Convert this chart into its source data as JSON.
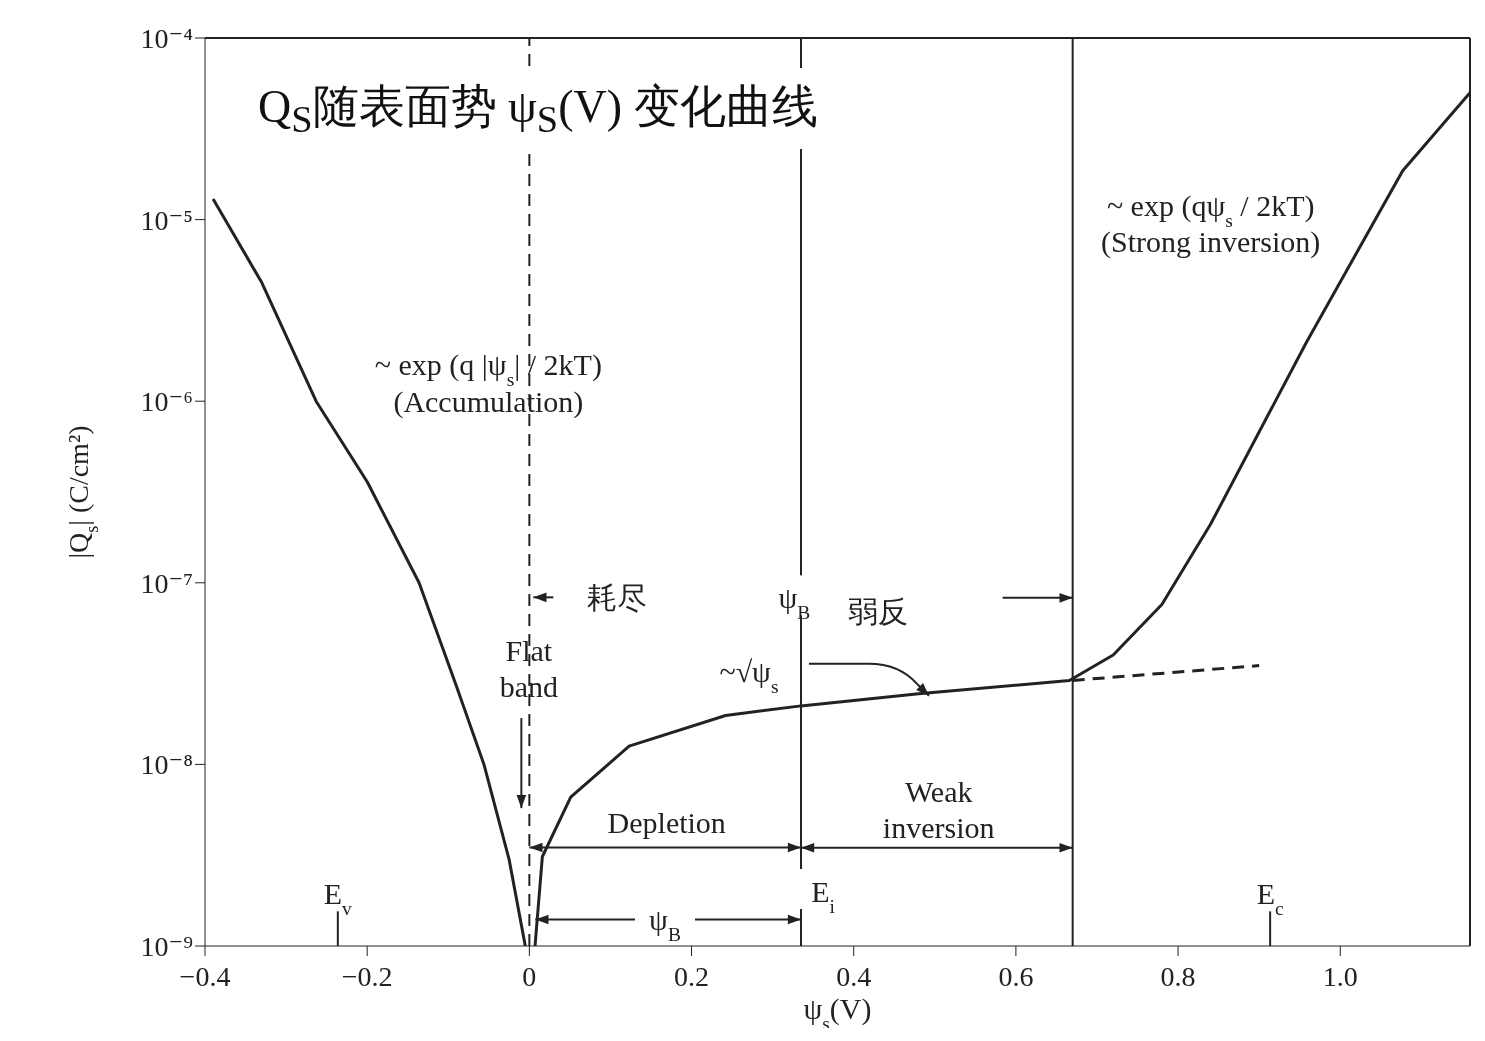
{
  "chart_data": {
    "type": "line",
    "title": "Q$_{S}$随表面势 ψ$_{S}$(V) 变化曲线",
    "xlabel": "ψ$_{s}$(V)",
    "ylabel": "|Q$_{s}$| (C/cm²)",
    "log": "y",
    "marker": "none",
    "line_style": "solid",
    "xlim": [
      -0.4,
      1.16
    ],
    "xticks": [
      {
        "value": -0.4,
        "label": "−0.4"
      },
      {
        "value": -0.2,
        "label": "−0.2"
      },
      0,
      0.2,
      0.4,
      0.6,
      0.8,
      {
        "value": 1,
        "label": "1.0"
      }
    ],
    "ylim": [
      1e-09,
      0.0001
    ],
    "yticks": [
      {
        "value": 1e-09,
        "label": "10⁻⁹"
      },
      {
        "value": 1e-08,
        "label": "10⁻⁸"
      },
      {
        "value": 1e-07,
        "label": "10⁻⁷"
      },
      {
        "value": 1e-06,
        "label": "10⁻⁶"
      },
      {
        "value": 1e-05,
        "label": "10⁻⁵"
      },
      {
        "value": 0.0001,
        "label": "10⁻⁴"
      }
    ],
    "series": [
      {
        "color": "#222222",
        "x": [
          -0.39,
          -0.33,
          -0.263,
          -0.2,
          -0.136,
          -0.09,
          -0.056,
          -0.025,
          -0.005
        ],
        "values": [
          1.3e-05,
          4.5e-06,
          1e-06,
          3.6e-07,
          1e-07,
          2.7e-08,
          1e-08,
          3e-09,
          1e-09
        ]
      },
      {
        "color": "#222222",
        "x": [
          0.007,
          0.016,
          0.051,
          0.123,
          0.242,
          0.335,
          0.48,
          0.666,
          0.72,
          0.78,
          0.84,
          0.958,
          1.077,
          1.16
        ],
        "values": [
          1e-09,
          3.1e-09,
          6.6e-09,
          1.26e-08,
          1.86e-08,
          2.1e-08,
          2.45e-08,
          2.9e-08,
          4e-08,
          7.6e-08,
          2.1e-07,
          2.1e-06,
          1.86e-05,
          5e-05
        ]
      },
      {
        "color": "#222222",
        "line_style": "dashed",
        "x": [
          0.67,
          0.9
        ],
        "values": [
          2.9e-08,
          3.5e-08
        ]
      }
    ],
    "ref_lines": [
      {
        "axis": "x",
        "value": 0,
        "color": "#222222",
        "line_style": "dashed"
      },
      {
        "axis": "x",
        "value": 0.335,
        "color": "#222222"
      },
      {
        "axis": "x",
        "value": 0.67,
        "color": "#222222"
      }
    ],
    "annotations": [
      "~ exp (q |ψ$_{s}$| / 2kT)",
      "(Accumulation)",
      "~ exp (qψ$_{s}$ / 2kT)",
      "(Strong inversion)",
      "Flat\nband",
      "Depletion",
      "Weak\ninversion",
      "耗尽",
      "弱反",
      "ψ$_{B}$",
      {
        "text": "ψ$_{B}$",
        "x": 0.335,
        "y": 1.4e-09
      },
      "E$_{v}$",
      {
        "text": "E$_{i}$",
        "x": 0.335,
        "y": 1e-09
      },
      "E$_{c}$",
      "~√ψ$_{s}$"
    ]
  }
}
